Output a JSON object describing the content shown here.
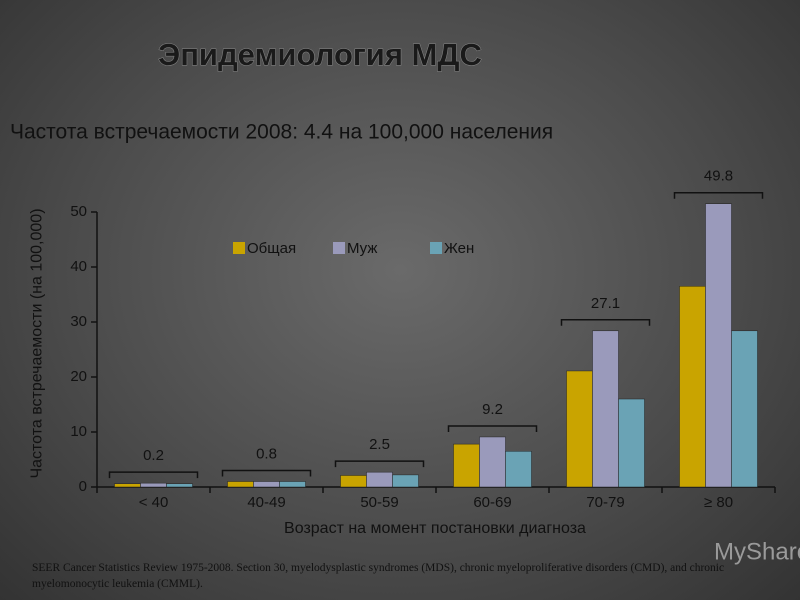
{
  "chart_data": {
    "type": "bar",
    "title": "Эпидемиология МДС",
    "subtitle": "Частота встречаемости 2008: 4.4 на 100,000 населения",
    "y_label": "Частота встречаемости (на 100,000)",
    "x_label": "Возраст на момент постановки диагноза",
    "categories": [
      "< 40",
      "40-49",
      "50-59",
      "60-69",
      "70-79",
      "≥ 80"
    ],
    "series": [
      {
        "name": "Общая",
        "color": "#c9a400",
        "values": [
          0.6,
          1.0,
          2.1,
          7.8,
          21.1,
          36.5
        ]
      },
      {
        "name": "Муж",
        "color": "#9a9abb",
        "values": [
          0.7,
          1.0,
          2.7,
          9.1,
          28.4,
          51.5
        ]
      },
      {
        "name": "Жен",
        "color": "#6aa3b5",
        "values": [
          0.6,
          1.0,
          2.2,
          6.5,
          16.0,
          28.4
        ]
      }
    ],
    "annotations": [
      "0.2",
      "0.8",
      "2.5",
      "9.2",
      "27.1",
      "49.8"
    ],
    "ylim": [
      0,
      50
    ],
    "yticks": [
      0,
      10,
      20,
      30,
      40,
      50
    ],
    "footnote": "SEER Cancer Statistics Review 1975-2008. Section 30, myelodysplastic syndromes (MDS), chronic myeloproliferative disorders (CMD), and chronic myelomonocytic leukemia (CMML).",
    "watermark": "MyShared"
  }
}
